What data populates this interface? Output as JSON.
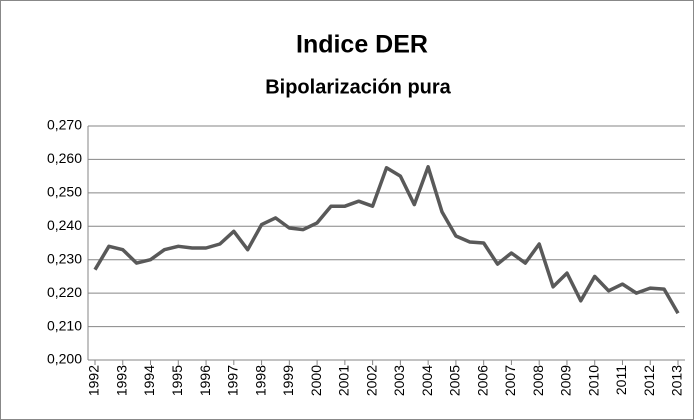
{
  "chart_data": {
    "type": "line",
    "title": "Indice DER",
    "subtitle": "Bipolarización pura",
    "categories": [
      "1992",
      null,
      "1993",
      null,
      "1994",
      null,
      "1995",
      null,
      "1996",
      null,
      "1997",
      null,
      "1998",
      null,
      "1999",
      null,
      "2000",
      null,
      "2001",
      null,
      "2002",
      null,
      "2003",
      null,
      "2004",
      null,
      "2005",
      null,
      "2006",
      null,
      "2007",
      null,
      "2008",
      null,
      "2009",
      null,
      "2010",
      null,
      "2011",
      null,
      "2012",
      null,
      "2013"
    ],
    "series": [
      {
        "name": "Indice DER",
        "color": "#595959",
        "values": [
          0.227,
          0.234,
          0.233,
          0.229,
          0.23,
          0.233,
          0.234,
          0.2335,
          0.2335,
          0.2347,
          0.2385,
          0.233,
          0.2405,
          0.2425,
          0.2395,
          0.239,
          0.241,
          0.246,
          0.246,
          0.2475,
          0.246,
          0.2575,
          0.255,
          0.2465,
          0.2578,
          0.2443,
          0.2371,
          0.2353,
          0.235,
          0.2287,
          0.232,
          0.229,
          0.2347,
          0.2219,
          0.226,
          0.2177,
          0.225,
          0.2207,
          0.2227,
          0.22,
          0.2215,
          0.2212,
          0.214
        ]
      }
    ],
    "ylim": [
      0.2,
      0.27
    ],
    "yticks": [
      {
        "value": 0.2,
        "label": "0,200"
      },
      {
        "value": 0.21,
        "label": "0,210"
      },
      {
        "value": 0.22,
        "label": "0,220"
      },
      {
        "value": 0.23,
        "label": "0,230"
      },
      {
        "value": 0.24,
        "label": "0,240"
      },
      {
        "value": 0.25,
        "label": "0,250"
      },
      {
        "value": 0.26,
        "label": "0,260"
      },
      {
        "value": 0.27,
        "label": "0,270"
      }
    ],
    "grid": true
  }
}
